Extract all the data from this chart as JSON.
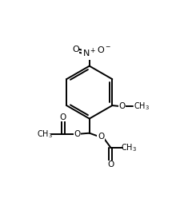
{
  "bg_color": "#ffffff",
  "line_color": "#000000",
  "line_width": 1.4,
  "font_size": 7.5,
  "figsize": [
    2.15,
    2.78
  ],
  "dpi": 100,
  "xlim": [
    0,
    10
  ],
  "ylim": [
    0,
    13
  ]
}
